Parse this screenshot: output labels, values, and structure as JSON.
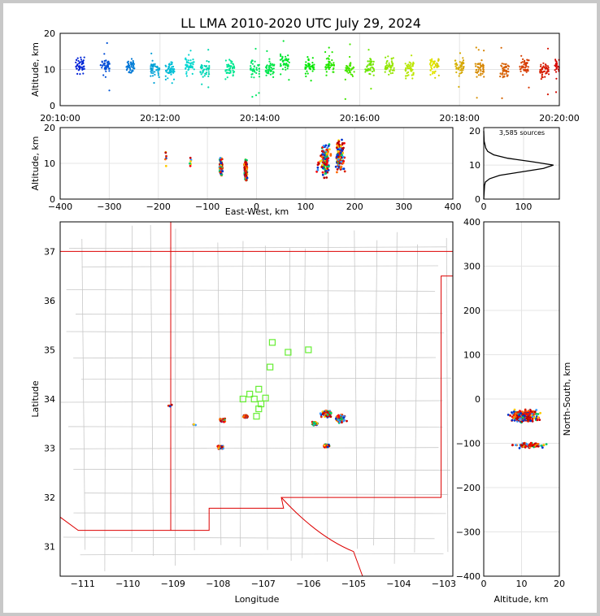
{
  "title": "LL LMA 2010-2020 UTC July 29, 2024",
  "chart_data": [
    {
      "name": "time-altitude",
      "type": "scatter",
      "ylabel": "Altitude, km",
      "xlim_minutes": [
        0,
        10
      ],
      "ylim": [
        0,
        20
      ],
      "x_ticks": [
        "20:10:00",
        "20:12:00",
        "20:14:00",
        "20:16:00",
        "20:18:00",
        "20:20:00"
      ],
      "y_ticks": [
        "0",
        "10",
        "20"
      ],
      "color_scale": "rainbow by time, blue (20:10) to red (20:20)",
      "clusters": [
        {
          "t": 0.4,
          "alt": 11
        },
        {
          "t": 0.9,
          "alt": 11
        },
        {
          "t": 1.4,
          "alt": 11
        },
        {
          "t": 1.9,
          "alt": 10
        },
        {
          "t": 2.2,
          "alt": 10
        },
        {
          "t": 2.6,
          "alt": 11
        },
        {
          "t": 2.9,
          "alt": 10
        },
        {
          "t": 3.4,
          "alt": 10
        },
        {
          "t": 3.9,
          "alt": 10
        },
        {
          "t": 4.2,
          "alt": 10
        },
        {
          "t": 4.5,
          "alt": 12
        },
        {
          "t": 5.0,
          "alt": 11
        },
        {
          "t": 5.4,
          "alt": 11
        },
        {
          "t": 5.8,
          "alt": 10
        },
        {
          "t": 6.2,
          "alt": 11
        },
        {
          "t": 6.6,
          "alt": 11
        },
        {
          "t": 7.0,
          "alt": 10
        },
        {
          "t": 7.5,
          "alt": 11
        },
        {
          "t": 8.0,
          "alt": 11
        },
        {
          "t": 8.4,
          "alt": 10
        },
        {
          "t": 8.9,
          "alt": 10
        },
        {
          "t": 9.3,
          "alt": 11
        },
        {
          "t": 9.7,
          "alt": 10
        },
        {
          "t": 10.0,
          "alt": 11
        }
      ]
    },
    {
      "name": "east-west-altitude",
      "type": "scatter",
      "xlabel": "East-West, km",
      "ylabel": "Altitude, km",
      "xlim": [
        -400,
        400
      ],
      "ylim": [
        0,
        20
      ],
      "x_ticks": [
        "−400",
        "−300",
        "−200",
        "−100",
        "0",
        "100",
        "200",
        "300",
        "400"
      ],
      "y_ticks": [
        "0",
        "10",
        "20"
      ],
      "clusters": [
        {
          "x": -72,
          "alt": 9
        },
        {
          "x": -22,
          "alt": 8
        },
        {
          "x": 140,
          "alt": 11
        },
        {
          "x": 170,
          "alt": 12
        },
        {
          "x": 125,
          "alt": 9
        },
        {
          "x": -185,
          "alt": 12
        },
        {
          "x": -135,
          "alt": 10
        }
      ]
    },
    {
      "name": "altitude-histogram",
      "type": "line",
      "annotation": "3,585 sources",
      "xlim": [
        0,
        190
      ],
      "ylim": [
        0,
        21
      ],
      "x_ticks": [
        "0",
        "100"
      ],
      "y_ticks": [
        "0",
        "10",
        "20"
      ],
      "profile": [
        {
          "alt": 0,
          "n": 0
        },
        {
          "alt": 4,
          "n": 2
        },
        {
          "alt": 5,
          "n": 4
        },
        {
          "alt": 6,
          "n": 15
        },
        {
          "alt": 7,
          "n": 40
        },
        {
          "alt": 8,
          "n": 95
        },
        {
          "alt": 9,
          "n": 150
        },
        {
          "alt": 10,
          "n": 175
        },
        {
          "alt": 11,
          "n": 120
        },
        {
          "alt": 12,
          "n": 60
        },
        {
          "alt": 13,
          "n": 25
        },
        {
          "alt": 14,
          "n": 10
        },
        {
          "alt": 15,
          "n": 5
        },
        {
          "alt": 16,
          "n": 3
        },
        {
          "alt": 17,
          "n": 1
        },
        {
          "alt": 20,
          "n": 0
        }
      ]
    },
    {
      "name": "plan-view-map",
      "type": "scatter",
      "xlabel": "Longitude",
      "ylabel": "Latitude",
      "xlim": [
        -111.5,
        -102.8
      ],
      "ylim": [
        30.4,
        37.6
      ],
      "x_ticks": [
        "−111",
        "−110",
        "−109",
        "−108",
        "−107",
        "−106",
        "−105",
        "−104",
        "−103"
      ],
      "y_ticks": [
        "31",
        "32",
        "33",
        "34",
        "35",
        "36",
        "37"
      ],
      "stations": [
        {
          "lon": -106.8,
          "lat": 35.15
        },
        {
          "lon": -106.45,
          "lat": 34.95
        },
        {
          "lon": -106.0,
          "lat": 35.0
        },
        {
          "lon": -106.85,
          "lat": 34.65
        },
        {
          "lon": -107.1,
          "lat": 34.2
        },
        {
          "lon": -107.3,
          "lat": 34.1
        },
        {
          "lon": -107.45,
          "lat": 34.0
        },
        {
          "lon": -107.2,
          "lat": 34.0
        },
        {
          "lon": -106.95,
          "lat": 34.02
        },
        {
          "lon": -107.1,
          "lat": 33.8
        },
        {
          "lon": -107.15,
          "lat": 33.65
        },
        {
          "lon": -107.05,
          "lat": 33.9
        }
      ],
      "clusters": [
        {
          "lon": -107.9,
          "lat": 33.57
        },
        {
          "lon": -107.4,
          "lat": 33.65
        },
        {
          "lon": -107.95,
          "lat": 33.02
        },
        {
          "lon": -105.6,
          "lat": 33.7
        },
        {
          "lon": -105.3,
          "lat": 33.6
        },
        {
          "lon": -105.85,
          "lat": 33.5
        },
        {
          "lon": -105.6,
          "lat": 33.05
        },
        {
          "lon": -109.05,
          "lat": 33.87
        },
        {
          "lon": -108.55,
          "lat": 33.47
        }
      ]
    },
    {
      "name": "north-south-altitude",
      "type": "scatter",
      "xlabel": "Altitude, km",
      "ylabel": "North-South, km",
      "xlim": [
        0,
        20
      ],
      "ylim": [
        -400,
        400
      ],
      "x_ticks": [
        "0",
        "10",
        "20"
      ],
      "y_ticks": [
        "−400",
        "−300",
        "−200",
        "−100",
        "0",
        "100",
        "200",
        "300",
        "400"
      ],
      "clusters": [
        {
          "alt": 11,
          "ns": -38
        },
        {
          "alt": 12,
          "ns": -105
        }
      ]
    }
  ]
}
